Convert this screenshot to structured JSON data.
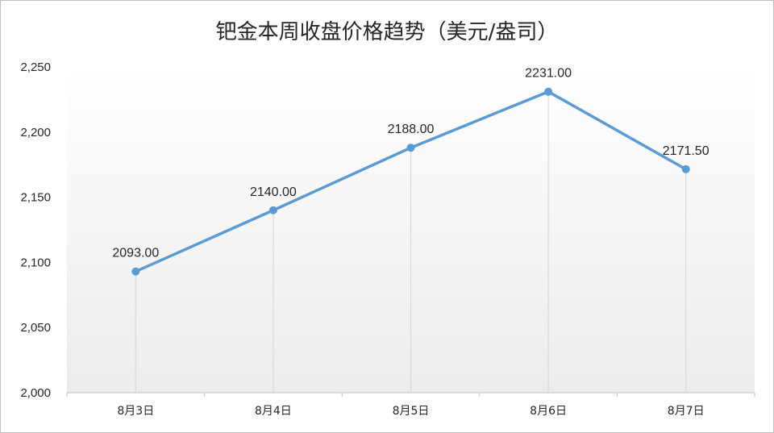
{
  "chart_data": {
    "type": "line",
    "title": "钯金本周收盘价格趋势（美元/盎司）",
    "categories": [
      "8月3日",
      "8月4日",
      "8月5日",
      "8月6日",
      "8月7日"
    ],
    "series": [
      {
        "values": [
          2093.0,
          2140.0,
          2188.0,
          2231.0,
          2171.5
        ],
        "labels": [
          "2093.00",
          "2140.00",
          "2188.00",
          "2231.00",
          "2171.50"
        ]
      }
    ],
    "ylim": [
      2000,
      2250
    ],
    "yticks": [
      2000,
      2050,
      2100,
      2150,
      2200,
      2250
    ],
    "ytick_labels": [
      "2,000",
      "2,050",
      "2,100",
      "2,150",
      "2,200",
      "2,250"
    ],
    "xlabel": "",
    "ylabel": "",
    "grid": false,
    "drop_lines": true,
    "legend": "none",
    "colors": {
      "line": "#5B9BD5",
      "drop_line": "#d9d9d9",
      "axis": "#bfbfbf",
      "text": "#262626"
    }
  }
}
